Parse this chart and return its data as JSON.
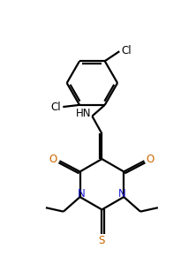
{
  "bg_color": "#ffffff",
  "line_color": "#000000",
  "N_color": "#1a1acd",
  "O_color": "#cc6600",
  "S_color": "#cc6600",
  "linewidth": 1.6,
  "figsize": [
    2.22,
    3.16
  ],
  "dpi": 100,
  "xlim": [
    0,
    10
  ],
  "ylim": [
    0,
    14.2
  ]
}
